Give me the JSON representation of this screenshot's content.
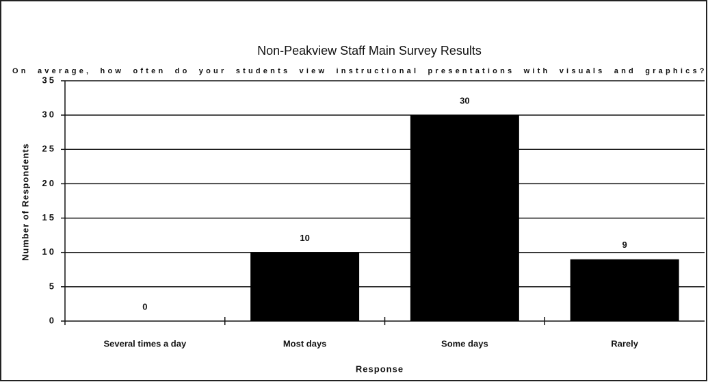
{
  "chart_data": {
    "type": "bar",
    "title": "Non-Peakview Staff Main Survey Results",
    "subtitle": "On average, how often do your students view instructional presentations with visuals and graphics?",
    "y_label": "Number of Respondents",
    "x_label": "Response",
    "categories": [
      "Several times a day",
      "Most days",
      "Some days",
      "Rarely"
    ],
    "values": [
      0,
      10,
      30,
      9
    ],
    "color": "#000000",
    "ylim": [
      0,
      35
    ],
    "yticks": [
      0,
      5,
      10,
      15,
      20,
      25,
      30,
      35
    ],
    "grid": true
  }
}
